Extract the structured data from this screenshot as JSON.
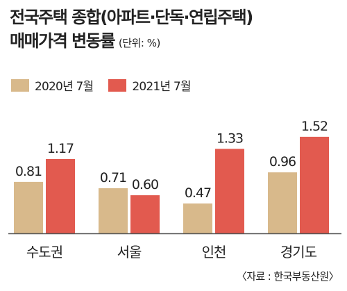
{
  "title_line1": "전국주택 종합(아파트·단독·연립주택)",
  "title_line2": "매매가격 변동률",
  "unit": "(단위: %)",
  "source": "〈자료 : 한국부동산원〉",
  "colors": {
    "series1": "#d8b98b",
    "series2": "#e25a4f",
    "baseline": "#555555"
  },
  "chart_data": {
    "type": "bar",
    "title": "전국주택 종합(아파트·단독·연립주택) 매매가격 변동률",
    "unit": "%",
    "categories": [
      "수도권",
      "서울",
      "인천",
      "경기도"
    ],
    "series": [
      {
        "name": "2020년 7월",
        "values": [
          0.81,
          0.71,
          0.47,
          0.96
        ]
      },
      {
        "name": "2021년 7월",
        "values": [
          1.17,
          0.6,
          1.33,
          1.52
        ]
      }
    ],
    "ylim": [
      0,
      1.6
    ],
    "grid": false,
    "legend": "top-left"
  }
}
